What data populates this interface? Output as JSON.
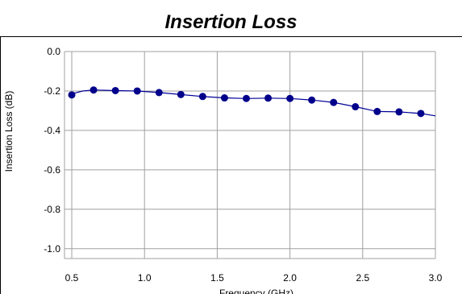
{
  "chart_data": {
    "type": "line",
    "title": "Insertion Loss",
    "xlabel": "Frequency (GHz)",
    "ylabel": "Insertion Loss (dB)",
    "xlim": [
      0.45,
      3.0
    ],
    "ylim": [
      -1.05,
      0.0
    ],
    "x_ticks": [
      0.5,
      1.0,
      1.5,
      2.0,
      2.5,
      3.0
    ],
    "x_tick_labels": [
      "0.5",
      "1.0",
      "1.5",
      "2.0",
      "2.5",
      "3.0"
    ],
    "y_ticks": [
      0.0,
      -0.2,
      -0.4,
      -0.6,
      -0.8,
      -1.0
    ],
    "y_tick_labels": [
      "0.0",
      "-0.2",
      "-0.4",
      "-0.6",
      "-0.8",
      "-1.0"
    ],
    "grid": true,
    "series": [
      {
        "color": "#000099",
        "x": [
          0.5,
          0.65,
          0.8,
          0.95,
          1.1,
          1.25,
          1.4,
          1.55,
          1.7,
          1.85,
          2.0,
          2.15,
          2.3,
          2.45,
          2.6,
          2.75,
          2.9
        ],
        "y": [
          -0.22,
          -0.195,
          -0.198,
          -0.2,
          -0.208,
          -0.218,
          -0.228,
          -0.235,
          -0.238,
          -0.236,
          -0.238,
          -0.246,
          -0.258,
          -0.28,
          -0.304,
          -0.306,
          -0.314
        ],
        "line_x": [
          0.5,
          0.575,
          0.65,
          0.8,
          0.95,
          1.1,
          1.25,
          1.4,
          1.55,
          1.7,
          1.85,
          2.0,
          2.15,
          2.3,
          2.45,
          2.6,
          2.75,
          2.9,
          3.0
        ],
        "line_y": [
          -0.215,
          -0.2,
          -0.195,
          -0.198,
          -0.2,
          -0.208,
          -0.218,
          -0.228,
          -0.235,
          -0.238,
          -0.236,
          -0.238,
          -0.246,
          -0.258,
          -0.28,
          -0.304,
          -0.306,
          -0.314,
          -0.326
        ]
      }
    ],
    "colors": {
      "gridline": "#a0a0a0",
      "marker": "#00008b"
    }
  }
}
